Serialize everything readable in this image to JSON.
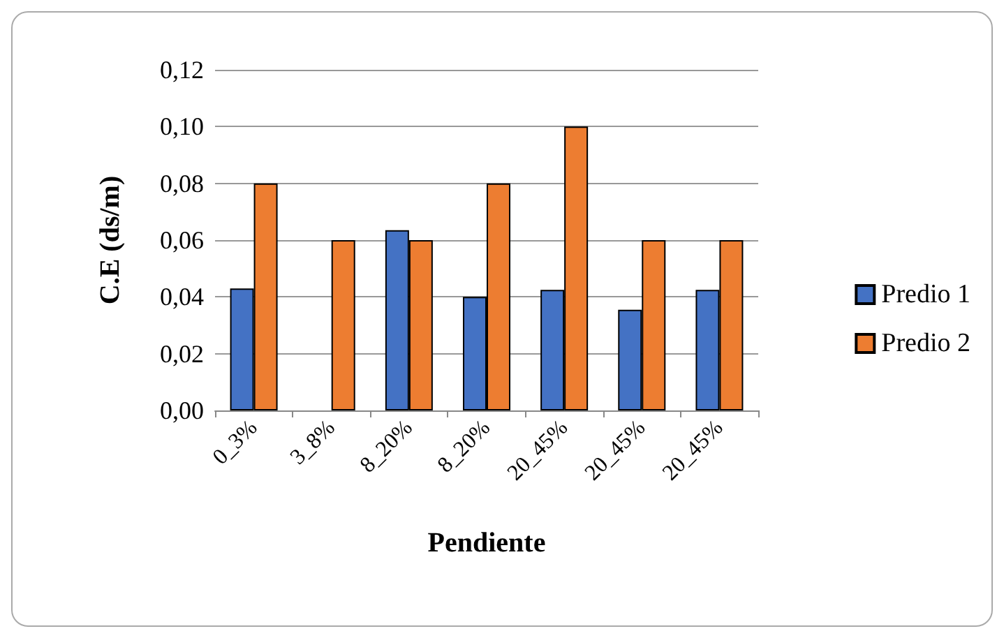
{
  "chart_data": {
    "type": "bar",
    "xlabel": "Pendiente",
    "ylabel": "C.E (ds/m)",
    "categories": [
      "0_3%",
      "3_8%",
      "8_20%",
      "8_20%",
      "20_45%",
      "20_45%",
      "20_45%"
    ],
    "series": [
      {
        "name": "Predio 1",
        "color": "#4472c4",
        "values": [
          0.043,
          null,
          0.0635,
          0.04,
          0.0425,
          0.0355,
          0.0425
        ]
      },
      {
        "name": "Predio 2",
        "color": "#ed7d31",
        "values": [
          0.08,
          0.06,
          0.06,
          0.08,
          0.1,
          0.06,
          0.06
        ]
      }
    ],
    "ylim": [
      0,
      0.12
    ],
    "yticks": [
      {
        "value": 0,
        "label": "0,00"
      },
      {
        "value": 0.02,
        "label": "0,02"
      },
      {
        "value": 0.04,
        "label": "0,04"
      },
      {
        "value": 0.06,
        "label": "0,06"
      },
      {
        "value": 0.08,
        "label": "0,08"
      },
      {
        "value": 0.1,
        "label": "0,10"
      },
      {
        "value": 0.12,
        "label": "0,12"
      }
    ],
    "grid": "y",
    "legend": "right"
  }
}
